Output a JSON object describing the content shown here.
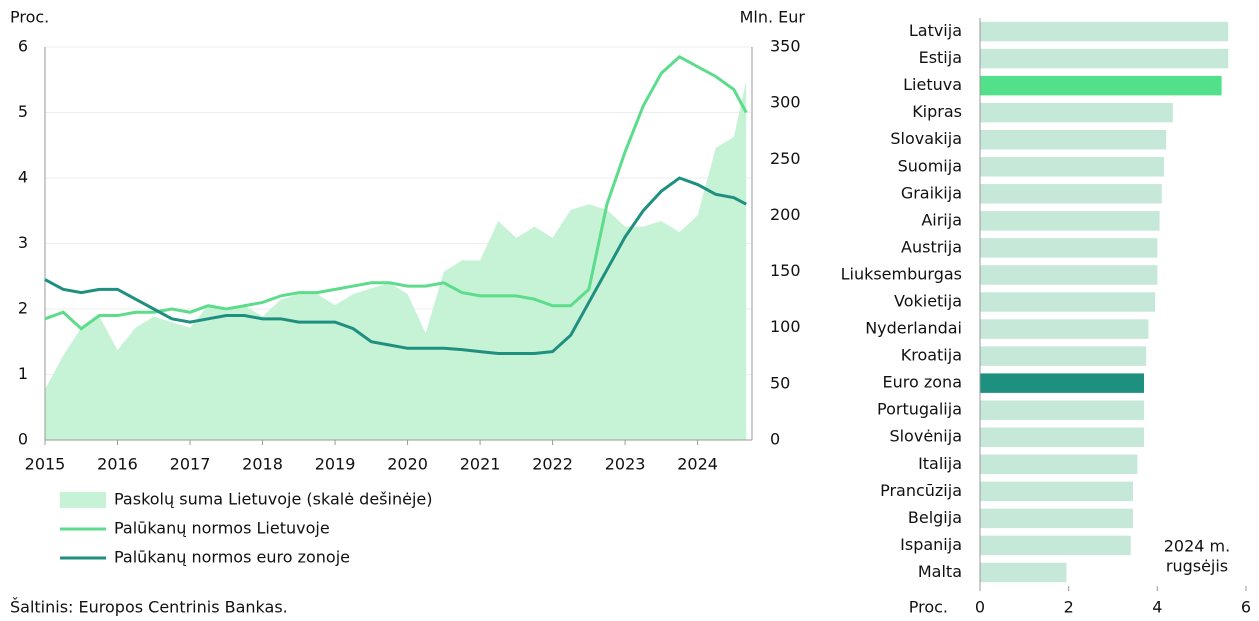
{
  "chart_data": [
    {
      "type": "line",
      "ylabel": "Proc.",
      "y2label": "Mln. Eur",
      "x": [
        2015,
        2015.25,
        2015.5,
        2015.75,
        2016,
        2016.25,
        2016.5,
        2016.75,
        2017,
        2017.25,
        2017.5,
        2017.75,
        2018,
        2018.25,
        2018.5,
        2018.75,
        2019,
        2019.25,
        2019.5,
        2019.75,
        2020,
        2020.25,
        2020.5,
        2020.75,
        2021,
        2021.25,
        2021.5,
        2021.75,
        2022,
        2022.25,
        2022.5,
        2022.75,
        2023,
        2023.25,
        2023.5,
        2023.75,
        2024,
        2024.25,
        2024.5,
        2024.67
      ],
      "xlim": [
        2015,
        2024.75
      ],
      "xticks": [
        2015,
        2016,
        2017,
        2018,
        2019,
        2020,
        2021,
        2022,
        2023,
        2024
      ],
      "ylim": [
        0,
        6
      ],
      "yticks": [
        0,
        1,
        2,
        3,
        4,
        5,
        6
      ],
      "y2lim": [
        0,
        350
      ],
      "y2ticks": [
        0,
        50,
        100,
        150,
        200,
        250,
        300,
        350
      ],
      "grid": true,
      "series": [
        {
          "name": "Paskolų suma Lietuvoje (skalė dešinėje)",
          "type": "area",
          "axis": "y2",
          "color": "#c6f2d6",
          "values": [
            45,
            75,
            100,
            110,
            80,
            100,
            110,
            105,
            100,
            120,
            115,
            120,
            110,
            125,
            130,
            130,
            120,
            130,
            135,
            140,
            130,
            95,
            150,
            160,
            160,
            195,
            180,
            190,
            180,
            205,
            210,
            205,
            190,
            190,
            195,
            185,
            200,
            260,
            270,
            320
          ]
        },
        {
          "name": "Palūkanų normos Lietuvoje",
          "type": "line",
          "color": "#5ddc8c",
          "values": [
            1.85,
            1.95,
            1.7,
            1.9,
            1.9,
            1.95,
            1.95,
            2.0,
            1.95,
            2.05,
            2.0,
            2.05,
            2.1,
            2.2,
            2.25,
            2.25,
            2.3,
            2.35,
            2.4,
            2.4,
            2.35,
            2.35,
            2.4,
            2.25,
            2.2,
            2.2,
            2.2,
            2.15,
            2.05,
            2.05,
            2.3,
            3.6,
            4.4,
            5.1,
            5.6,
            5.85,
            5.7,
            5.55,
            5.35,
            5.0
          ]
        },
        {
          "name": "Palūkanų normos euro zonoje",
          "type": "line",
          "color": "#1f8f80",
          "values": [
            2.45,
            2.3,
            2.25,
            2.3,
            2.3,
            2.15,
            2.0,
            1.85,
            1.8,
            1.85,
            1.9,
            1.9,
            1.85,
            1.85,
            1.8,
            1.8,
            1.8,
            1.7,
            1.5,
            1.45,
            1.4,
            1.4,
            1.4,
            1.38,
            1.35,
            1.32,
            1.32,
            1.32,
            1.35,
            1.6,
            2.1,
            2.6,
            3.1,
            3.5,
            3.8,
            4.0,
            3.9,
            3.75,
            3.7,
            3.6
          ]
        }
      ]
    },
    {
      "type": "bar",
      "orientation": "horizontal",
      "xlabel": "Proc.",
      "categories": [
        "Latvija",
        "Estija",
        "Lietuva",
        "Kipras",
        "Slovakija",
        "Suomija",
        "Graikija",
        "Airija",
        "Austrija",
        "Liuksemburgas",
        "Vokietija",
        "Nyderlandai",
        "Kroatija",
        "Euro zona",
        "Portugalija",
        "Slovėnija",
        "Italija",
        "Prancūzija",
        "Belgija",
        "Ispanija",
        "Malta"
      ],
      "values": [
        5.6,
        5.6,
        5.45,
        4.35,
        4.2,
        4.15,
        4.1,
        4.05,
        4.0,
        4.0,
        3.95,
        3.8,
        3.75,
        3.7,
        3.7,
        3.7,
        3.55,
        3.45,
        3.45,
        3.4,
        1.95
      ],
      "colors": [
        "#c5e8d8",
        "#c5e8d8",
        "#52e08a",
        "#c5e8d8",
        "#c5e8d8",
        "#c5e8d8",
        "#c5e8d8",
        "#c5e8d8",
        "#c5e8d8",
        "#c5e8d8",
        "#c5e8d8",
        "#c5e8d8",
        "#c5e8d8",
        "#1e9080",
        "#c5e8d8",
        "#c5e8d8",
        "#c5e8d8",
        "#c5e8d8",
        "#c5e8d8",
        "#c5e8d8",
        "#c5e8d8"
      ],
      "xlim": [
        0,
        6
      ],
      "xticks": [
        0,
        2,
        4,
        6
      ],
      "annotation": [
        "2024 m.",
        "rugsėjis"
      ]
    }
  ],
  "source": "Šaltinis: Europos Centrinis Bankas."
}
